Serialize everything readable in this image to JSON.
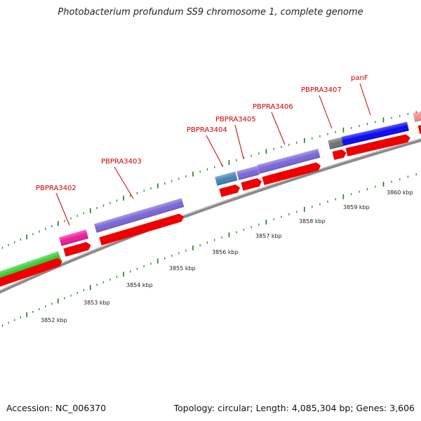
{
  "title": "Photobacterium profundum SS9 chromosome 1, complete genome",
  "footer": {
    "accession": "Accession: NC_006370",
    "summary": "Topology: circular; Length: 4,085,304 bp; Genes: 3,606"
  },
  "colors": {
    "backbone": "#8a8a8a",
    "tick": "#1f7a1f",
    "gene_label": "#cc0000",
    "cds_arrow": "#ee0000"
  },
  "scale_labels": [
    {
      "kbp": 3852,
      "label": "3852 kbp"
    },
    {
      "kbp": 3853,
      "label": "3853 kbp"
    },
    {
      "kbp": 3854,
      "label": "3854 kbp"
    },
    {
      "kbp": 3855,
      "label": "3855 kbp"
    },
    {
      "kbp": 3856,
      "label": "3856 kbp"
    },
    {
      "kbp": 3857,
      "label": "3857 kbp"
    },
    {
      "kbp": 3858,
      "label": "3858 kbp"
    },
    {
      "kbp": 3859,
      "label": "3859 kbp"
    },
    {
      "kbp": 3860,
      "label": "3860 kbp"
    }
  ],
  "genes": [
    {
      "label": "",
      "color": "#33cc33"
    },
    {
      "label": "PBPRA3402",
      "color": "#ee1c97"
    },
    {
      "label": "PBPRA3403",
      "color": "#7b66d6"
    },
    {
      "label": "PBPRA3404",
      "color": "#4682b4"
    },
    {
      "label": "PBPRA3405",
      "color": "#7b66d6"
    },
    {
      "label": "PBPRA3406",
      "color": "#7b66d6"
    },
    {
      "label": "",
      "color": "#707070"
    },
    {
      "label": "PBPRA3407",
      "color": "#707070"
    },
    {
      "label": "panF",
      "color": "#0a0aee"
    },
    {
      "label": "",
      "color": "#f09090"
    }
  ]
}
